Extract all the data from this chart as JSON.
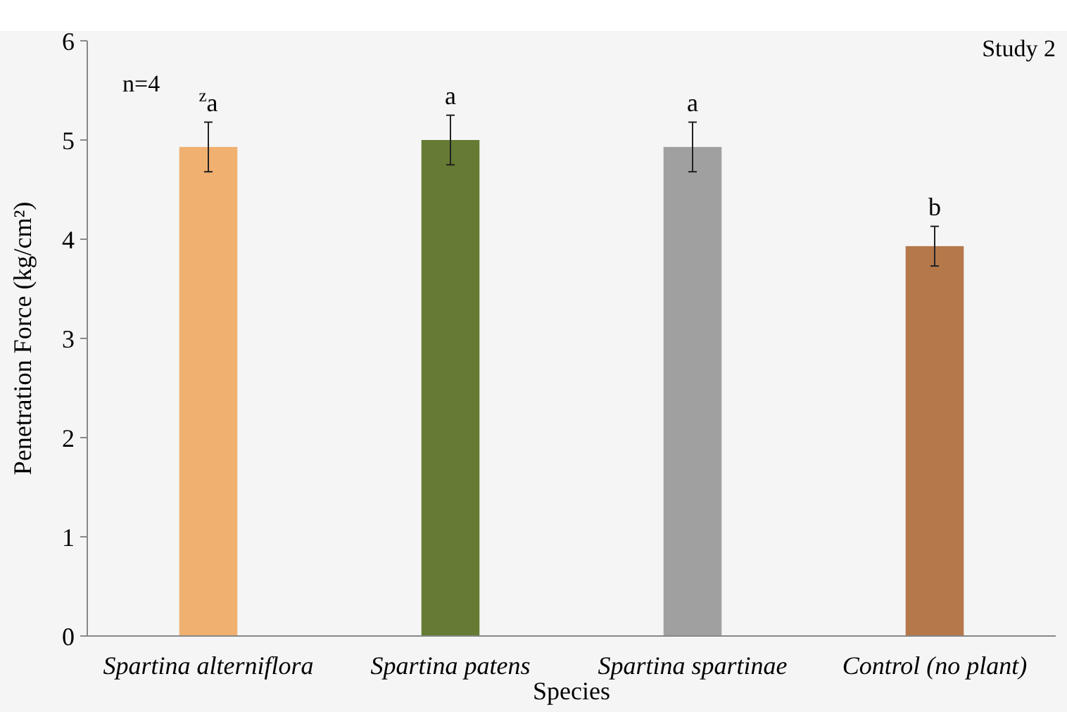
{
  "chart_data": {
    "type": "bar",
    "xlabel": "Species",
    "ylabel": "Penetration Force (kg/cm²)",
    "categories": [
      "Spartina alterniflora",
      "Spartina patens",
      "Spartina spartinae",
      "Control (no plant)"
    ],
    "values": [
      4.93,
      5.0,
      4.93,
      3.93
    ],
    "colors": [
      "#f0b070",
      "#657b33",
      "#a0a0a0",
      "#b5784a"
    ],
    "errors": [
      0.25,
      0.25,
      0.25,
      0.2
    ],
    "ylim": [
      0,
      6
    ],
    "yticks": [
      0,
      1,
      2,
      3,
      4,
      5,
      6
    ],
    "grid": false,
    "annotations": [
      "$^{z}$a",
      "a",
      "a",
      "b",
      "n=4",
      "Study 2"
    ]
  }
}
